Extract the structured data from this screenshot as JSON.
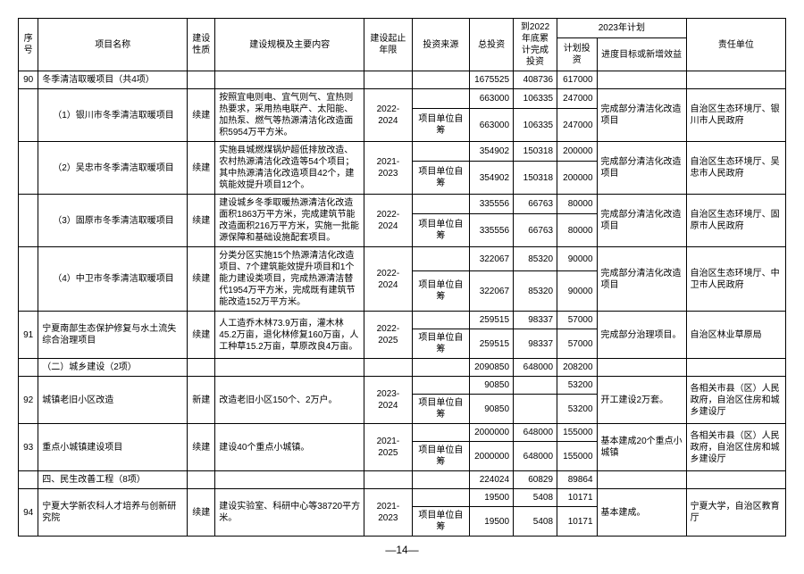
{
  "headers": {
    "seq": "序号",
    "name": "项目名称",
    "type": "建设性质",
    "desc": "建设规模及主要内容",
    "period": "建设起止年限",
    "source": "投资来源",
    "total": "总投资",
    "cum": "到2022年底累计完成投资",
    "plan2023": "2023年计划",
    "plan_inv": "计划投资",
    "plan_goal": "进度目标或新增效益",
    "resp": "责任单位"
  },
  "rows": [
    {
      "seq": "90",
      "name": "冬季清洁取暖项目（共4项）",
      "type": "",
      "desc": "",
      "period": "",
      "source": "",
      "total": "1675525",
      "cum": "408736",
      "plan": "617000",
      "goal": "",
      "resp": ""
    },
    {
      "seq": "",
      "name": "（1）银川市冬季清洁取暖项目",
      "type": "续建",
      "desc": "按照宜电则电、宜气则气、宜热则热要求，采用热电联产、太阳能、加热泵、燃气等热源清洁化改造面积5954万平方米。",
      "period": "2022-2024",
      "source": "",
      "total": "663000",
      "cum": "106335",
      "plan": "247000",
      "goal": "完成部分清洁化改造项目",
      "resp": "自治区生态环境厅、银川市人民政府",
      "sub": {
        "source": "项目单位自筹",
        "total": "663000",
        "cum": "106335",
        "plan": "247000"
      }
    },
    {
      "seq": "",
      "name": "（2）吴忠市冬季清洁取暖项目",
      "type": "续建",
      "desc": "实施县城燃煤锅炉超低排放改造、农村热源清洁化改造等54个项目；其中热源清洁化改造项目42个，建筑能效提升项目12个。",
      "period": "2021-2023",
      "source": "",
      "total": "354902",
      "cum": "150318",
      "plan": "200000",
      "goal": "完成部分清洁化改造项目",
      "resp": "自治区生态环境厅、吴忠市人民政府",
      "sub": {
        "source": "项目单位自筹",
        "total": "354902",
        "cum": "150318",
        "plan": "200000"
      }
    },
    {
      "seq": "",
      "name": "（3）固原市冬季清洁取暖项目",
      "type": "续建",
      "desc": "建设城乡冬季取暖热源清洁化改造面积1863万平方米，完成建筑节能改造面积216万平方米，实施一批能源保障和基础设施配套项目。",
      "period": "2022-2024",
      "source": "",
      "total": "335556",
      "cum": "66763",
      "plan": "80000",
      "goal": "完成部分清洁化改造项目",
      "resp": "自治区生态环境厅、固原市人民政府",
      "sub": {
        "source": "项目单位自筹",
        "total": "335556",
        "cum": "66763",
        "plan": "80000"
      }
    },
    {
      "seq": "",
      "name": "（4）中卫市冬季清洁取暖项目",
      "type": "续建",
      "desc": "分类分区实施15个热源清洁化改造项目、7个建筑能效提升项目和1个能力建设类项目，完成热源清洁替代1954万平方米，完成既有建筑节能改造152万平方米。",
      "period": "2022-2024",
      "source": "",
      "total": "322067",
      "cum": "85320",
      "plan": "90000",
      "goal": "完成部分清洁化改造项目",
      "resp": "自治区生态环境厅、中卫市人民政府",
      "sub": {
        "source": "项目单位自筹",
        "total": "322067",
        "cum": "85320",
        "plan": "90000"
      }
    },
    {
      "seq": "91",
      "name": "宁夏南部生态保护修复与水土流失综合治理项目",
      "type": "续建",
      "desc": "人工造乔木林73.9万亩，灌木林45.2万亩，退化林修复160万亩，人工种草15.2万亩，草原改良4万亩。",
      "period": "2022-2025",
      "source": "",
      "total": "259515",
      "cum": "98337",
      "plan": "57000",
      "goal": "完成部分治理项目。",
      "resp": "自治区林业草原局",
      "sub": {
        "source": "项目单位自筹",
        "total": "259515",
        "cum": "98337",
        "plan": "57000"
      }
    },
    {
      "seq": "",
      "name": "（二）城乡建设（2项）",
      "type": "",
      "desc": "",
      "period": "",
      "source": "",
      "total": "2090850",
      "cum": "648000",
      "plan": "208200",
      "goal": "",
      "resp": ""
    },
    {
      "seq": "92",
      "name": "城镇老旧小区改造",
      "type": "新建",
      "desc": "改造老旧小区150个、2万户。",
      "period": "2023-2024",
      "source": "",
      "total": "90850",
      "cum": "",
      "plan": "53200",
      "goal": "开工建设2万套。",
      "resp": "各相关市县（区）人民政府，自治区住房和城乡建设厅",
      "sub": {
        "source": "项目单位自筹",
        "total": "90850",
        "cum": "",
        "plan": "53200"
      }
    },
    {
      "seq": "93",
      "name": "重点小城镇建设项目",
      "type": "续建",
      "desc": "建设40个重点小城镇。",
      "period": "2021-2025",
      "source": "",
      "total": "2000000",
      "cum": "648000",
      "plan": "155000",
      "goal": "基本建成20个重点小城镇",
      "resp": "各相关市县（区）人民政府，自治区住房和城乡建设厅",
      "sub": {
        "source": "项目单位自筹",
        "total": "2000000",
        "cum": "648000",
        "plan": "155000"
      }
    },
    {
      "seq": "",
      "name": "四、民生改善工程（8项）",
      "type": "",
      "desc": "",
      "period": "",
      "source": "",
      "total": "224024",
      "cum": "60829",
      "plan": "89864",
      "goal": "",
      "resp": ""
    },
    {
      "seq": "94",
      "name": "宁夏大学新农科人才培养与创新研究院",
      "type": "续建",
      "desc": "建设实验室、科研中心等38720平方米。",
      "period": "2021-2023",
      "source": "",
      "total": "19500",
      "cum": "5408",
      "plan": "10171",
      "goal": "基本建成。",
      "resp": "宁夏大学，自治区教育厅",
      "sub": {
        "source": "项目单位自筹",
        "total": "19500",
        "cum": "5408",
        "plan": "10171"
      }
    }
  ],
  "page": "—14—"
}
